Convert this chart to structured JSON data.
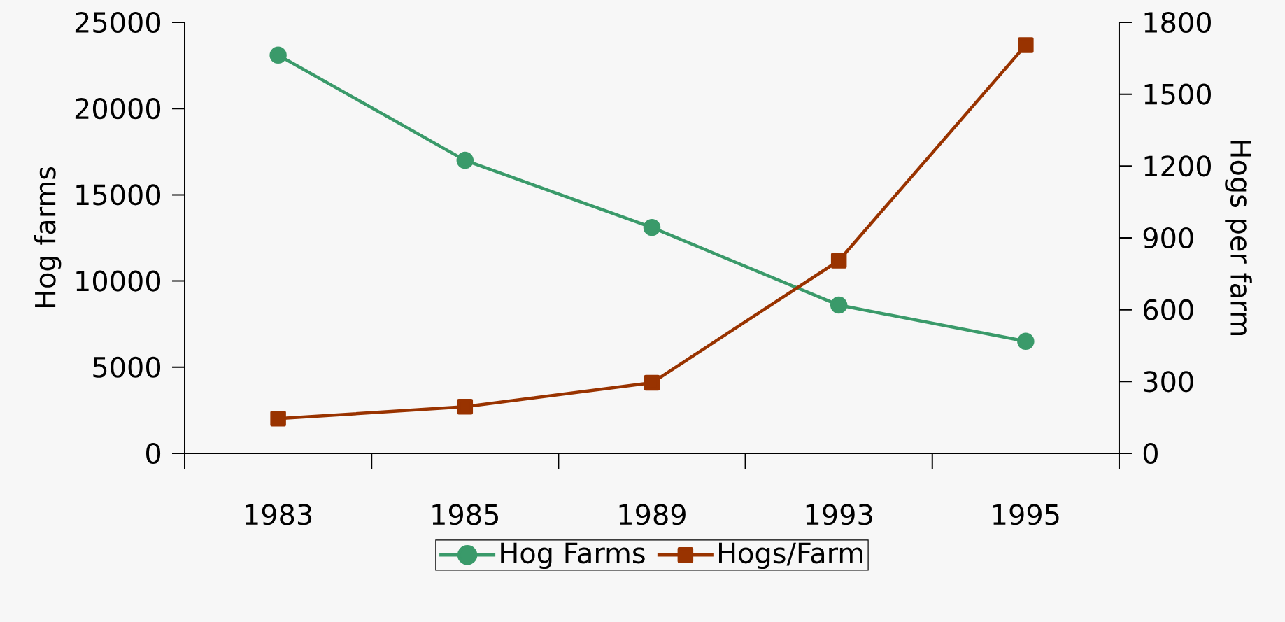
{
  "chart_data": {
    "type": "line",
    "ylabel": "Hog farms",
    "y2label": "Hogs per farm",
    "categories": [
      "1983",
      "1985",
      "1989",
      "1993",
      "1995"
    ],
    "series": [
      {
        "name": "Hog Farms",
        "color": "#3a9a6a",
        "marker": "circle",
        "values": [
          23100,
          17000,
          13100,
          8600,
          6500
        ]
      },
      {
        "name": "Hogs/Farm",
        "color": "#993300",
        "marker": "square",
        "axis": "y2",
        "values": [
          145,
          195,
          295,
          805,
          1705
        ]
      }
    ],
    "ylim": [
      0,
      25000
    ],
    "yticks": [
      0,
      5000,
      10000,
      15000,
      20000,
      25000
    ],
    "y2lim": [
      0,
      1800
    ],
    "y2ticks": [
      0,
      300,
      600,
      900,
      1200,
      1500,
      1800
    ],
    "grid": false,
    "legend": "bottom",
    "line_style": "solid"
  }
}
